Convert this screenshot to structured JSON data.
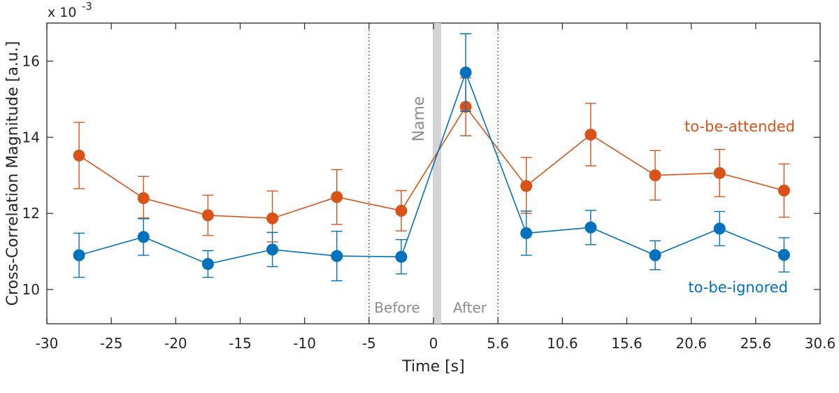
{
  "chart_data": {
    "type": "line",
    "xlabel": "Time [s]",
    "ylabel": "Cross-Correlation Magnitude [a.u.]",
    "y_scale_prefix": "x 10",
    "y_scale_exponent": "-3",
    "xlim": [
      -30,
      30.6
    ],
    "ylim": [
      9.1,
      17.0
    ],
    "x_ticks": [
      -30,
      -25,
      -20,
      -15,
      -10,
      -5,
      0,
      5.6,
      10.6,
      15.6,
      20.6,
      25.6,
      30.6
    ],
    "x_tick_labels": [
      "-30",
      "-25",
      "-20",
      "-15",
      "-10",
      "-5",
      "0",
      "5.6",
      "10.6",
      "15.6",
      "20.6",
      "25.6",
      "30.6"
    ],
    "y_ticks": [
      10,
      12,
      14,
      16
    ],
    "y_tick_labels": [
      "10",
      "12",
      "14",
      "16"
    ],
    "annotations": {
      "name_label": "Name",
      "before_label": "Before",
      "after_label": "After",
      "name_marker_x": 0.3,
      "window_lines_x": [
        -5,
        5.6
      ]
    },
    "series": [
      {
        "name": "to-be-attended",
        "color": "#d95319",
        "x": [
          -27.5,
          -22.5,
          -17.5,
          -12.5,
          -7.5,
          -2.5,
          2.8,
          7.8,
          12.8,
          17.8,
          22.8,
          27.8
        ],
        "values": [
          13.52,
          12.4,
          11.95,
          11.87,
          12.43,
          12.07,
          14.8,
          12.72,
          14.07,
          13.0,
          13.06,
          12.6
        ],
        "err_low": [
          0.87,
          0.52,
          0.53,
          0.62,
          0.72,
          0.53,
          0.76,
          0.72,
          0.82,
          0.65,
          0.62,
          0.7
        ],
        "err_high": [
          0.87,
          0.57,
          0.53,
          0.72,
          0.72,
          0.53,
          0.76,
          0.75,
          0.82,
          0.65,
          0.62,
          0.7
        ]
      },
      {
        "name": "to-be-ignored",
        "color": "#0072bd",
        "x": [
          -27.5,
          -22.5,
          -17.5,
          -12.5,
          -7.5,
          -2.5,
          2.8,
          7.8,
          12.8,
          17.8,
          22.8,
          27.8
        ],
        "values": [
          10.9,
          11.38,
          10.67,
          11.05,
          10.88,
          10.86,
          15.7,
          11.48,
          11.63,
          10.9,
          11.6,
          10.91
        ],
        "err_low": [
          0.58,
          0.48,
          0.35,
          0.45,
          0.65,
          0.45,
          1.02,
          0.58,
          0.45,
          0.38,
          0.45,
          0.45
        ],
        "err_high": [
          0.58,
          0.48,
          0.35,
          0.45,
          0.65,
          0.45,
          1.02,
          0.58,
          0.45,
          0.38,
          0.45,
          0.45
        ]
      }
    ]
  }
}
